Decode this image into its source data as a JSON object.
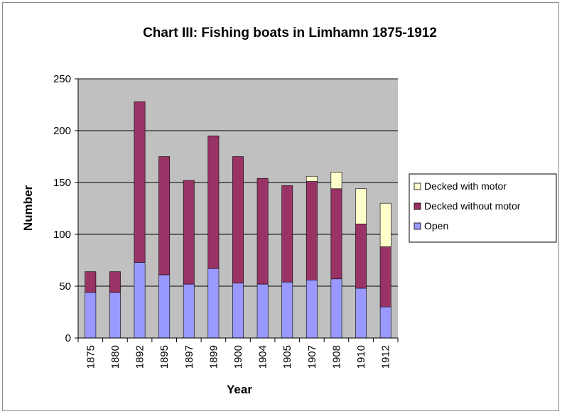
{
  "chart_data": {
    "type": "bar",
    "stacked": true,
    "title": "Chart III: Fishing boats in Limhamn 1875-1912",
    "xlabel": "Year",
    "ylabel": "Number",
    "ylim": [
      0,
      250
    ],
    "yticks": [
      0,
      50,
      100,
      150,
      200,
      250
    ],
    "grid": true,
    "legend_position": "right",
    "categories": [
      "1875",
      "1880",
      "1892",
      "1895",
      "1897",
      "1899",
      "1900",
      "1904",
      "1905",
      "1907",
      "1908",
      "1910",
      "1912"
    ],
    "series": [
      {
        "name": "Open",
        "color": "#9999ff",
        "values": [
          44,
          44,
          73,
          61,
          52,
          67,
          53,
          52,
          54,
          56,
          57,
          48,
          30
        ]
      },
      {
        "name": "Decked without motor",
        "color": "#993366",
        "values": [
          20,
          20,
          155,
          114,
          100,
          128,
          122,
          102,
          93,
          95,
          87,
          62,
          58
        ]
      },
      {
        "name": "Decked with motor",
        "color": "#ffffcc",
        "values": [
          0,
          0,
          0,
          0,
          0,
          0,
          0,
          0,
          0,
          5,
          16,
          34,
          42
        ]
      }
    ],
    "legend_order": [
      "Decked with motor",
      "Decked without motor",
      "Open"
    ],
    "plot_background": "#c0c0c0"
  }
}
